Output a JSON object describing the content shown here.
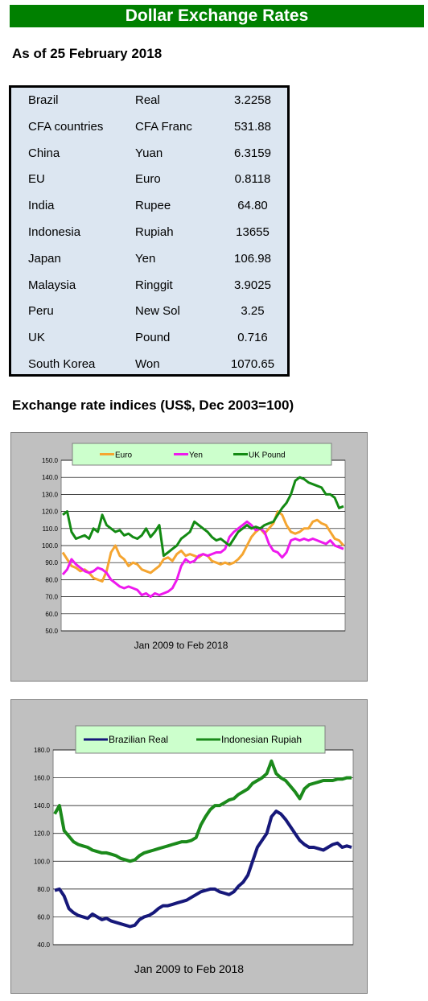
{
  "header": {
    "title": "Dollar Exchange Rates"
  },
  "as_of": "As of 25 February 2018",
  "rates": [
    {
      "country": "Brazil",
      "currency": "Real",
      "rate": "3.2258"
    },
    {
      "country": "CFA countries",
      "currency": "CFA Franc",
      "rate": "531.88"
    },
    {
      "country": "China",
      "currency": "Yuan",
      "rate": "6.3159"
    },
    {
      "country": "EU",
      "currency": "Euro",
      "rate": "0.8118"
    },
    {
      "country": "India",
      "currency": "Rupee",
      "rate": "64.80"
    },
    {
      "country": "Indonesia",
      "currency": "Rupiah",
      "rate": "13655"
    },
    {
      "country": "Japan",
      "currency": "Yen",
      "rate": "106.98"
    },
    {
      "country": "Malaysia",
      "currency": "Ringgit",
      "rate": "3.9025"
    },
    {
      "country": "Peru",
      "currency": "New Sol",
      "rate": "3.25"
    },
    {
      "country": "UK",
      "currency": "Pound",
      "rate": "0.716"
    },
    {
      "country": "South Korea",
      "currency": "Won",
      "rate": "1070.65"
    }
  ],
  "indices_heading": "Exchange rate indices (US$, Dec 2003=100)",
  "chart_data": [
    {
      "type": "line",
      "title": "",
      "xlabel": "Jan 2009  to Feb 2018",
      "ylabel": "",
      "ylim": [
        50,
        150
      ],
      "yticks": [
        "150.0",
        "140.0",
        "130.0",
        "120.0",
        "110.0",
        "100.0",
        "90.0",
        "80.0",
        "70.0",
        "60.0",
        "50.0"
      ],
      "grid": true,
      "legend": "top",
      "series": [
        {
          "name": "Euro",
          "color": "#f5a530",
          "values": [
            96,
            92,
            88,
            87,
            85,
            86,
            84,
            81,
            80,
            79,
            85,
            96,
            100,
            94,
            92,
            88,
            90,
            89,
            86,
            85,
            84,
            86,
            88,
            92,
            93,
            91,
            95,
            97,
            94,
            95,
            94,
            93,
            95,
            94,
            91,
            90,
            89,
            90,
            89,
            90,
            92,
            95,
            100,
            105,
            108,
            110,
            107,
            110,
            113,
            120,
            118,
            112,
            108,
            107,
            108,
            110,
            110,
            114,
            115,
            113,
            112,
            108,
            104,
            103,
            100
          ]
        },
        {
          "name": "Yen",
          "color": "#ee19ee",
          "values": [
            83,
            86,
            92,
            89,
            87,
            85,
            84,
            85,
            87,
            86,
            84,
            80,
            78,
            76,
            75,
            76,
            75,
            74,
            71,
            72,
            70,
            72,
            71,
            72,
            73,
            75,
            80,
            88,
            92,
            90,
            91,
            94,
            95,
            94,
            95,
            96,
            96,
            98,
            105,
            108,
            110,
            112,
            114,
            112,
            109,
            110,
            108,
            101,
            97,
            96,
            93,
            96,
            103,
            104,
            103,
            104,
            103,
            104,
            103,
            102,
            101,
            103,
            100,
            99,
            98
          ]
        },
        {
          "name": "UK Pound",
          "color": "#138a13",
          "values": [
            118,
            120,
            108,
            104,
            105,
            106,
            104,
            110,
            108,
            118,
            112,
            110,
            108,
            109,
            106,
            107,
            105,
            104,
            106,
            110,
            105,
            108,
            112,
            94,
            96,
            98,
            100,
            104,
            106,
            108,
            114,
            112,
            110,
            108,
            105,
            103,
            104,
            102,
            100,
            104,
            108,
            110,
            112,
            110,
            111,
            110,
            112,
            113,
            114,
            118,
            122,
            125,
            130,
            138,
            140,
            139,
            137,
            136,
            135,
            134,
            130,
            130,
            128,
            122,
            123
          ]
        }
      ]
    },
    {
      "type": "line",
      "title": "",
      "xlabel": "Jan 2009 to Feb 2018",
      "ylabel": "",
      "ylim": [
        40,
        180
      ],
      "yticks": [
        "180.0",
        "160.0",
        "140.0",
        "120.0",
        "100.0",
        "80.0",
        "60.0",
        "40.0"
      ],
      "grid": true,
      "legend": "top",
      "series": [
        {
          "name": "Brazilian Real",
          "color": "#16187a",
          "values": [
            79,
            80,
            75,
            66,
            63,
            61,
            60,
            59,
            62,
            60,
            58,
            59,
            57,
            56,
            55,
            54,
            53,
            54,
            58,
            60,
            61,
            63,
            66,
            68,
            68,
            69,
            70,
            71,
            72,
            74,
            76,
            78,
            79,
            80,
            80,
            78,
            77,
            76,
            78,
            82,
            85,
            90,
            100,
            110,
            115,
            120,
            132,
            136,
            134,
            130,
            125,
            120,
            115,
            112,
            110,
            110,
            109,
            108,
            110,
            112,
            113,
            110,
            111,
            110
          ]
        },
        {
          "name": "Indonesian Rupiah",
          "color": "#1b8a1b",
          "values": [
            134,
            140,
            122,
            118,
            114,
            112,
            111,
            110,
            108,
            107,
            106,
            106,
            105,
            104,
            102,
            101,
            100,
            101,
            104,
            106,
            107,
            108,
            109,
            110,
            111,
            112,
            113,
            114,
            114,
            115,
            117,
            126,
            132,
            137,
            140,
            140,
            142,
            144,
            145,
            148,
            150,
            152,
            156,
            158,
            160,
            163,
            172,
            163,
            160,
            158,
            154,
            150,
            145,
            152,
            155,
            156,
            157,
            158,
            158,
            158,
            159,
            159,
            160,
            160
          ]
        }
      ]
    }
  ]
}
